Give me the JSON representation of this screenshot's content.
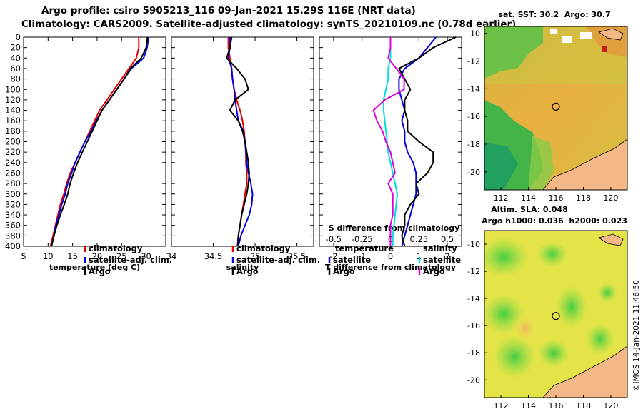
{
  "header": {
    "line1": "Argo profile: csiro 5905213_116 09-Jan-2021 15.29S 116E (NRT data)",
    "line2": "Climatology: CARS2009. Satellite-adjusted climatology: synTS_20210109.nc (0.78d earlier)"
  },
  "colors": {
    "climatology": "#ee0000",
    "satellite": "#0000dd",
    "argo": "#000000",
    "argo_salinity_diff": "#dd00dd",
    "satellite_salinity_diff": "#00dddd"
  },
  "watermark": "©IMOS 14-Jan-2021 11:46:50",
  "chart_data": [
    {
      "type": "line",
      "name": "temperature",
      "xlabel": "temperature (deg C)",
      "ylabel": "",
      "xlim": [
        5,
        34
      ],
      "ylim": [
        400,
        0
      ],
      "xticks": [
        5,
        10,
        15,
        20,
        25,
        30
      ],
      "yticks": [
        0,
        20,
        40,
        60,
        80,
        100,
        120,
        140,
        160,
        180,
        200,
        220,
        240,
        260,
        280,
        300,
        320,
        340,
        360,
        380,
        400
      ],
      "legend": {
        "position": "lower-right",
        "entries": [
          {
            "label": "climatology",
            "color_key": "climatology"
          },
          {
            "label": "satellite-adj. clim.",
            "color_key": "satellite"
          },
          {
            "label": "Argo",
            "color_key": "argo"
          }
        ]
      },
      "series": [
        {
          "name": "climatology",
          "color_key": "climatology",
          "x": [
            28.5,
            28.5,
            28.0,
            26.5,
            25.0,
            23.5,
            22.0,
            20.5,
            19.5,
            18.5,
            17.5,
            16.5,
            15.5,
            14.5,
            13.8,
            13.2,
            12.5,
            12.0,
            11.5,
            11.0,
            10.5
          ],
          "y": [
            0,
            20,
            40,
            60,
            80,
            100,
            120,
            140,
            160,
            180,
            200,
            220,
            240,
            260,
            280,
            300,
            320,
            340,
            360,
            380,
            400
          ]
        },
        {
          "name": "satellite-adj. clim.",
          "color_key": "satellite",
          "x": [
            30.5,
            30.2,
            29.5,
            27.0,
            25.5,
            24.0,
            22.5,
            21.0,
            19.8,
            18.8,
            17.5,
            16.5,
            15.5,
            14.8,
            14.0,
            13.5,
            12.8,
            12.2,
            11.6,
            11.2,
            10.7
          ],
          "y": [
            0,
            20,
            40,
            60,
            80,
            100,
            120,
            140,
            160,
            180,
            200,
            220,
            240,
            260,
            280,
            300,
            320,
            340,
            360,
            380,
            400
          ]
        },
        {
          "name": "Argo",
          "color_key": "argo",
          "x": [
            30.3,
            30.0,
            29.0,
            26.8,
            25.5,
            24.0,
            22.5,
            21.0,
            20.0,
            19.0,
            18.0,
            17.0,
            16.0,
            15.2,
            14.5,
            14.0,
            13.3,
            12.5,
            11.8,
            11.2,
            10.7
          ],
          "y": [
            0,
            20,
            40,
            60,
            80,
            100,
            120,
            140,
            160,
            180,
            200,
            220,
            240,
            260,
            280,
            300,
            320,
            340,
            360,
            380,
            400
          ]
        }
      ]
    },
    {
      "type": "line",
      "name": "salinity",
      "xlabel": "salinity",
      "ylabel": "",
      "xlim": [
        34.0,
        35.7
      ],
      "ylim": [
        400,
        0
      ],
      "xticks": [
        34.5,
        35.0,
        35.5
      ],
      "xtick_labels": [
        "34.5",
        "35",
        "35.5"
      ],
      "legend": {
        "position": "lower-right",
        "entries": [
          {
            "label": "climatology",
            "color_key": "climatology"
          },
          {
            "label": "satellite-adj. clim.",
            "color_key": "satellite"
          },
          {
            "label": "Argo",
            "color_key": "argo"
          }
        ]
      },
      "series": [
        {
          "name": "climatology",
          "color_key": "climatology",
          "x": [
            34.68,
            34.68,
            34.7,
            34.72,
            34.73,
            34.75,
            34.78,
            34.82,
            34.85,
            34.87,
            34.88,
            34.89,
            34.89,
            34.9,
            34.9,
            34.88,
            34.86,
            34.84,
            34.82,
            34.8,
            34.79
          ],
          "y": [
            0,
            20,
            40,
            60,
            80,
            100,
            120,
            140,
            160,
            180,
            200,
            220,
            240,
            260,
            280,
            300,
            320,
            340,
            360,
            380,
            400
          ]
        },
        {
          "name": "satellite-adj. clim.",
          "color_key": "satellite",
          "x": [
            34.7,
            34.7,
            34.68,
            34.72,
            34.73,
            34.75,
            34.76,
            34.78,
            34.8,
            34.86,
            34.88,
            34.89,
            34.9,
            34.92,
            34.95,
            34.97,
            34.96,
            34.93,
            34.88,
            34.83,
            34.8
          ],
          "y": [
            0,
            20,
            40,
            60,
            80,
            100,
            120,
            140,
            160,
            180,
            200,
            220,
            240,
            260,
            280,
            300,
            320,
            340,
            360,
            380,
            400
          ]
        },
        {
          "name": "Argo",
          "color_key": "argo",
          "x": [
            34.72,
            34.7,
            34.66,
            34.78,
            34.88,
            34.92,
            34.76,
            34.7,
            34.8,
            34.85,
            34.88,
            34.9,
            34.92,
            34.93,
            34.92,
            34.9,
            34.87,
            34.84,
            34.82,
            34.8,
            34.79
          ],
          "y": [
            0,
            20,
            40,
            60,
            80,
            100,
            120,
            140,
            160,
            180,
            200,
            220,
            240,
            260,
            280,
            300,
            320,
            340,
            360,
            380,
            400
          ]
        }
      ]
    },
    {
      "type": "line",
      "name": "difference-from-climatology",
      "xlabel": "T difference from climatology",
      "top_axis_label": "S difference from climatology",
      "xlim": [
        -2.5,
        2.5
      ],
      "ylim": [
        400,
        0
      ],
      "xticks": [
        -2,
        -1,
        0,
        1,
        2
      ],
      "xtick_labels": [
        "-2",
        "-1",
        "0",
        "1",
        "2"
      ],
      "secondary_xlim": [
        -0.625,
        0.625
      ],
      "secondary_xticks": [
        -0.5,
        -0.25,
        0,
        0.25,
        0.5
      ],
      "secondary_xtick_labels": [
        "-0.5",
        "-0.25",
        "0",
        "0.25",
        "0.5"
      ],
      "legends": [
        {
          "position": "lower-left",
          "title": "temperature",
          "entries": [
            {
              "label": "satellite",
              "color_key": "satellite"
            },
            {
              "label": "Argo",
              "color_key": "argo"
            }
          ]
        },
        {
          "position": "lower-right",
          "title": "salinity",
          "entries": [
            {
              "label": "satellite",
              "color_key": "satellite_salinity_diff"
            },
            {
              "label": "Argo",
              "color_key": "argo_salinity_diff"
            }
          ]
        }
      ],
      "series": [
        {
          "name": "temperature satellite",
          "color_key": "satellite",
          "axis": "T",
          "x": [
            1.6,
            1.3,
            1.0,
            0.5,
            0.3,
            0.3,
            0.4,
            0.5,
            0.4,
            0.5,
            0.5,
            0.6,
            0.8,
            0.9,
            0.9,
            0.9,
            0.8,
            0.7,
            0.6,
            0.5,
            0.4
          ],
          "y": [
            0,
            20,
            40,
            60,
            80,
            100,
            120,
            140,
            160,
            180,
            200,
            220,
            240,
            260,
            280,
            300,
            320,
            340,
            360,
            380,
            400
          ]
        },
        {
          "name": "temperature Argo",
          "color_key": "argo",
          "axis": "T",
          "x": [
            2.3,
            1.5,
            1.0,
            0.3,
            0.5,
            0.7,
            0.5,
            0.5,
            0.6,
            0.6,
            1.0,
            1.5,
            1.5,
            1.3,
            0.9,
            1.0,
            0.7,
            0.5,
            0.5,
            0.4,
            0.5
          ],
          "y": [
            0,
            20,
            40,
            60,
            80,
            100,
            120,
            140,
            160,
            180,
            200,
            220,
            240,
            260,
            280,
            300,
            320,
            340,
            360,
            380,
            400
          ]
        },
        {
          "name": "salinity satellite",
          "color_key": "satellite_salinity_diff",
          "axis": "S",
          "x": [
            0.0,
            0.0,
            0.0,
            -0.02,
            -0.02,
            -0.04,
            -0.06,
            -0.06,
            -0.05,
            -0.04,
            -0.03,
            -0.02,
            0.0,
            0.02,
            0.04,
            0.06,
            0.05,
            0.04,
            0.03,
            0.02,
            0.02
          ],
          "y": [
            0,
            20,
            40,
            60,
            80,
            100,
            120,
            140,
            160,
            180,
            200,
            220,
            240,
            260,
            280,
            300,
            320,
            340,
            360,
            380,
            400
          ]
        },
        {
          "name": "salinity Argo",
          "color_key": "argo_salinity_diff",
          "axis": "S",
          "x": [
            0.0,
            0.0,
            -0.02,
            0.05,
            0.12,
            0.12,
            -0.05,
            -0.15,
            -0.12,
            -0.07,
            -0.04,
            0.0,
            0.02,
            0.04,
            -0.02,
            0.02,
            0.02,
            0.02,
            0.0,
            0.0,
            0.0
          ],
          "y": [
            0,
            20,
            40,
            60,
            80,
            100,
            120,
            140,
            160,
            180,
            200,
            220,
            240,
            260,
            280,
            300,
            320,
            340,
            360,
            380,
            400
          ]
        }
      ]
    },
    {
      "type": "heatmap",
      "name": "sst-map",
      "title": "sat. SST: 30.2  Argo: 30.7",
      "xlim": [
        110.8,
        121.2
      ],
      "ylim": [
        -21.3,
        -9.5
      ],
      "xticks": [
        112,
        114,
        116,
        118,
        120
      ],
      "yticks": [
        -10,
        -12,
        -14,
        -16,
        -18,
        -20
      ],
      "marker": {
        "lon": 116.0,
        "lat": -15.29
      }
    },
    {
      "type": "heatmap",
      "name": "sla-map",
      "title": "Altim. SLA: 0.048",
      "subtitle": "Argo h1000: 0.036  h2000: 0.023",
      "xlim": [
        110.8,
        121.2
      ],
      "ylim": [
        -21.3,
        -9.0
      ],
      "xticks": [
        112,
        114,
        116,
        118,
        120
      ],
      "yticks": [
        -10,
        -12,
        -14,
        -16,
        -18,
        -20
      ],
      "marker": {
        "lon": 116.0,
        "lat": -15.29
      }
    }
  ]
}
